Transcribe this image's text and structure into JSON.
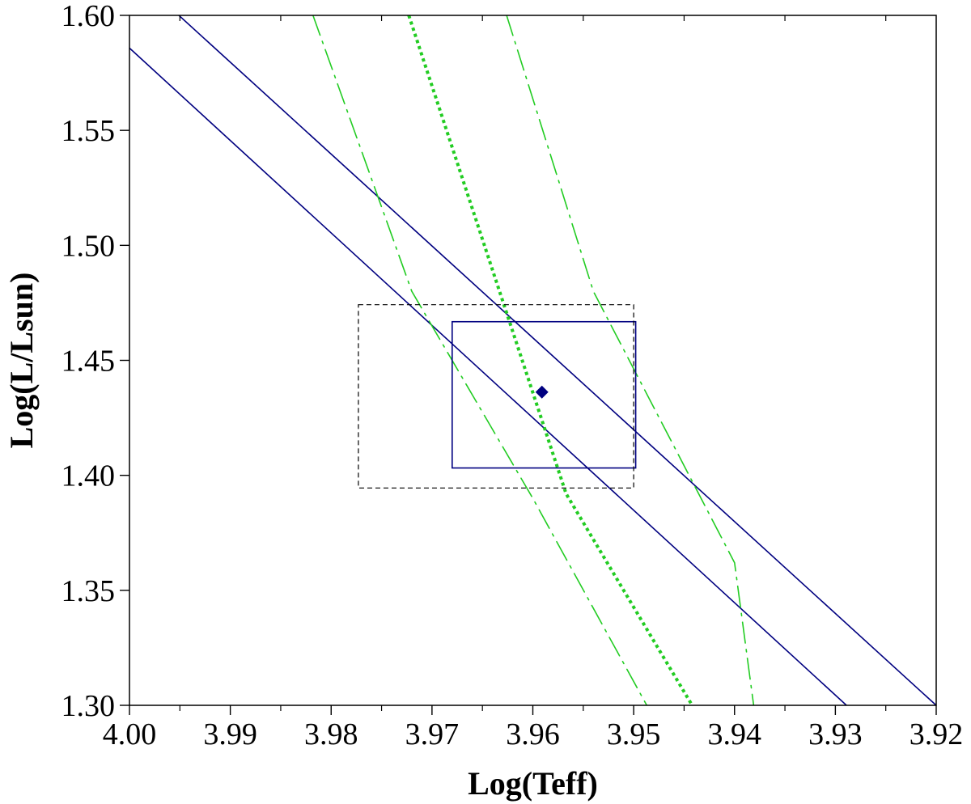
{
  "chart_data": {
    "type": "line",
    "xlabel": "Log(Teff)",
    "ylabel": "Log(L/Lsun)",
    "xlim": [
      4.0,
      3.92
    ],
    "ylim": [
      1.3,
      1.6
    ],
    "x_reversed": true,
    "x_major_ticks": [
      4.0,
      3.99,
      3.98,
      3.97,
      3.96,
      3.95,
      3.94,
      3.93,
      3.92
    ],
    "x_tick_labels": [
      "4.00",
      "3.99",
      "3.98",
      "3.97",
      "3.96",
      "3.95",
      "3.94",
      "3.93",
      "3.92"
    ],
    "x_minor_ticks": [
      3.995,
      3.985,
      3.975,
      3.965,
      3.955,
      3.945,
      3.935,
      3.925
    ],
    "y_major_ticks": [
      1.3,
      1.35,
      1.4,
      1.45,
      1.5,
      1.55,
      1.6
    ],
    "y_tick_labels": [
      "1.30",
      "1.35",
      "1.40",
      "1.45",
      "1.50",
      "1.55",
      "1.60"
    ],
    "grid": false,
    "series": [
      {
        "style": "solid",
        "color": "#000080",
        "width": 1.6,
        "points": [
          [
            4.0,
            1.5858
          ],
          [
            3.9289,
            1.3
          ]
        ]
      },
      {
        "style": "solid",
        "color": "#000080",
        "width": 1.6,
        "points": [
          [
            3.9951,
            1.6
          ],
          [
            3.92,
            1.3
          ]
        ]
      },
      {
        "style": "dotted",
        "color": "#22cc22",
        "width": 4,
        "points": [
          [
            3.9723,
            1.6
          ],
          [
            3.9621,
            1.464
          ],
          [
            3.9567,
            1.392
          ],
          [
            3.9442,
            1.3
          ]
        ]
      },
      {
        "style": "dashdot",
        "color": "#22cc22",
        "width": 1.6,
        "points": [
          [
            3.9818,
            1.6
          ],
          [
            3.972,
            1.48
          ],
          [
            3.96,
            1.39
          ],
          [
            3.9487,
            1.3
          ]
        ]
      },
      {
        "style": "dashdot",
        "color": "#22cc22",
        "width": 1.6,
        "points": [
          [
            3.9626,
            1.6
          ],
          [
            3.954,
            1.48
          ],
          [
            3.94,
            1.362
          ],
          [
            3.9381,
            1.3
          ]
        ]
      },
      {
        "style": "rect-solid",
        "color": "#000080",
        "width": 1.6,
        "x": [
          3.968,
          3.9498
        ],
        "y": [
          1.4032,
          1.4668
        ]
      },
      {
        "style": "rect-dashed",
        "color": "#000000",
        "width": 1.2,
        "x": [
          3.9773,
          3.95
        ],
        "y": [
          1.3945,
          1.4742
        ]
      }
    ],
    "point": {
      "x": 3.9591,
      "y": 1.4362,
      "marker": "diamond",
      "color": "#000080"
    }
  }
}
